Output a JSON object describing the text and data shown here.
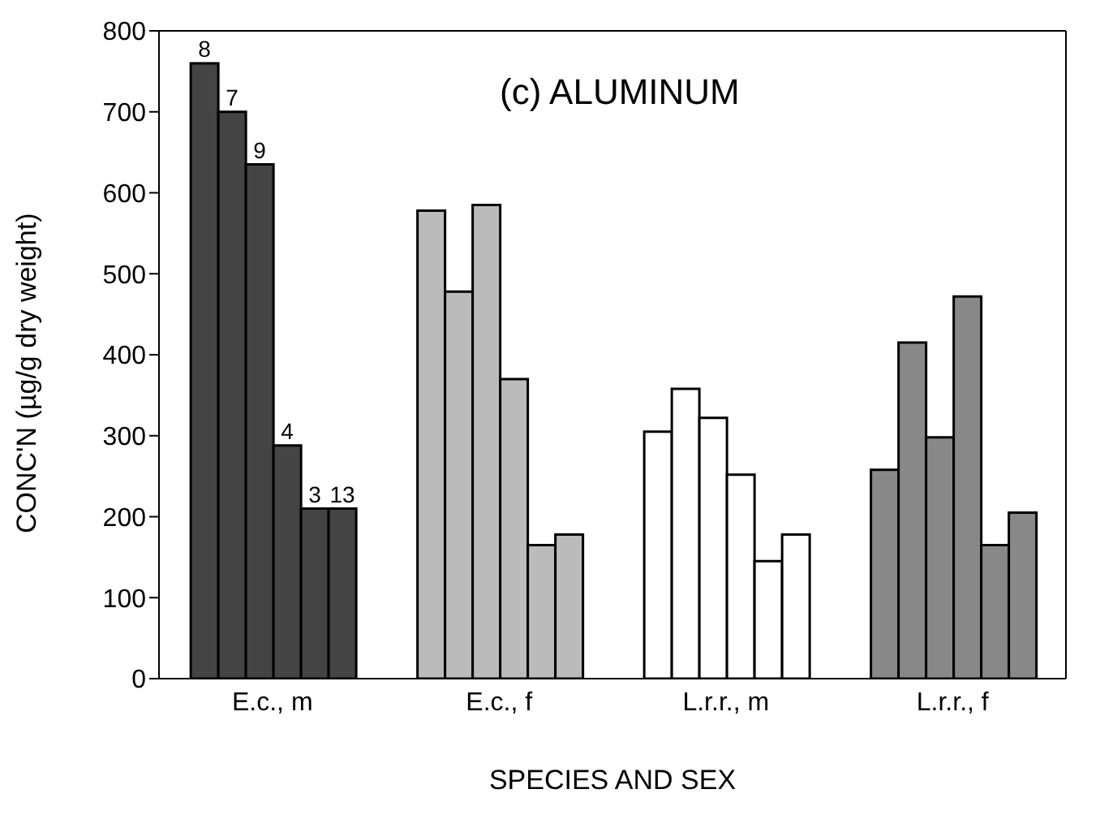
{
  "chart_data": {
    "type": "bar",
    "title": "(c) ALUMINUM",
    "xlabel": "SPECIES AND SEX",
    "ylabel": "CONC'N (µg/g dry weight)",
    "categories": [
      "E.c., m",
      "E.c., f",
      "L.r.r., m",
      "L.r.r., f"
    ],
    "series": [
      {
        "colors": [
          "#444444",
          "#bbbbbb",
          "#ffffff",
          "#888888"
        ],
        "values": [
          760,
          578,
          305,
          258
        ]
      },
      {
        "colors": [
          "#444444",
          "#bbbbbb",
          "#ffffff",
          "#888888"
        ],
        "values": [
          700,
          478,
          358,
          415
        ]
      },
      {
        "colors": [
          "#444444",
          "#bbbbbb",
          "#ffffff",
          "#888888"
        ],
        "values": [
          635,
          585,
          322,
          298
        ]
      },
      {
        "colors": [
          "#444444",
          "#bbbbbb",
          "#ffffff",
          "#888888"
        ],
        "values": [
          288,
          370,
          252,
          472
        ]
      },
      {
        "colors": [
          "#444444",
          "#bbbbbb",
          "#ffffff",
          "#888888"
        ],
        "values": [
          210,
          165,
          145,
          165
        ]
      },
      {
        "colors": [
          "#444444",
          "#bbbbbb",
          "#ffffff",
          "#888888"
        ],
        "values": [
          210,
          178,
          178,
          205
        ]
      }
    ],
    "annotations": [
      "8",
      "7",
      "9",
      "4",
      "3",
      "13"
    ],
    "ylim": [
      0,
      800
    ],
    "yticks": [
      0,
      100,
      200,
      300,
      400,
      500,
      600,
      700,
      800
    ],
    "grid": false,
    "legend": false
  }
}
